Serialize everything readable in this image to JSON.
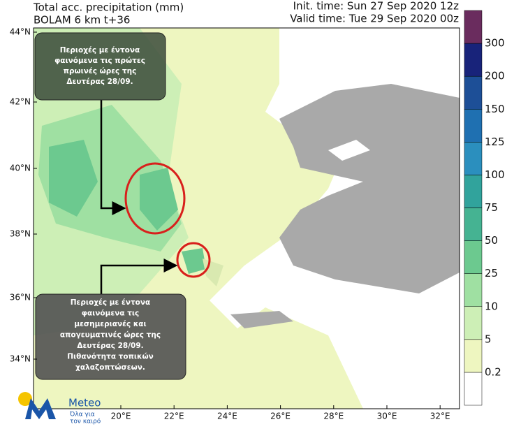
{
  "header": {
    "title": "Total acc. precipitation (mm)",
    "model": "BOLAM 6 km t+36",
    "init_time": "Init. time: Sun 27 Sep 2020 12z",
    "valid_time": "Valid time: Tue 29 Sep 2020 00z"
  },
  "annotations": [
    {
      "lines": [
        "Περιοχές με έντονα",
        "φαινόμενα  τις πρώτες",
        "πρωινές ώρες της",
        "Δευτέρας 28/09."
      ]
    },
    {
      "lines": [
        "Περιοχές με έντονα",
        "φαινόμενα  τις",
        "μεσημεριανές και",
        "απογευματινές ώρες της",
        "Δευτέρας 28/09.",
        "Πιθανότητα τοπικών",
        "χαλαζοπτώσεων."
      ]
    }
  ],
  "colorbar": {
    "levels": [
      0.2,
      5,
      10,
      25,
      50,
      75,
      100,
      125,
      150,
      200,
      300
    ],
    "colors": [
      "#ffffff",
      "#eef6c0",
      "#cdefb6",
      "#9fe0a2",
      "#6cc98f",
      "#45b392",
      "#31a39c",
      "#2b8fbe",
      "#1f70b1",
      "#1d4f97",
      "#18237a",
      "#6a2c5e"
    ]
  },
  "lat_labels": [
    "44°N",
    "42°N",
    "40°N",
    "38°N",
    "36°N",
    "34°N"
  ],
  "lon_labels": [
    "20°E",
    "22°E",
    "24°E",
    "26°E",
    "28°E",
    "30°E",
    "32°E"
  ],
  "logo": {
    "name": "Meteo",
    "tagline": [
      "Όλα για",
      "τον καιρό"
    ]
  }
}
